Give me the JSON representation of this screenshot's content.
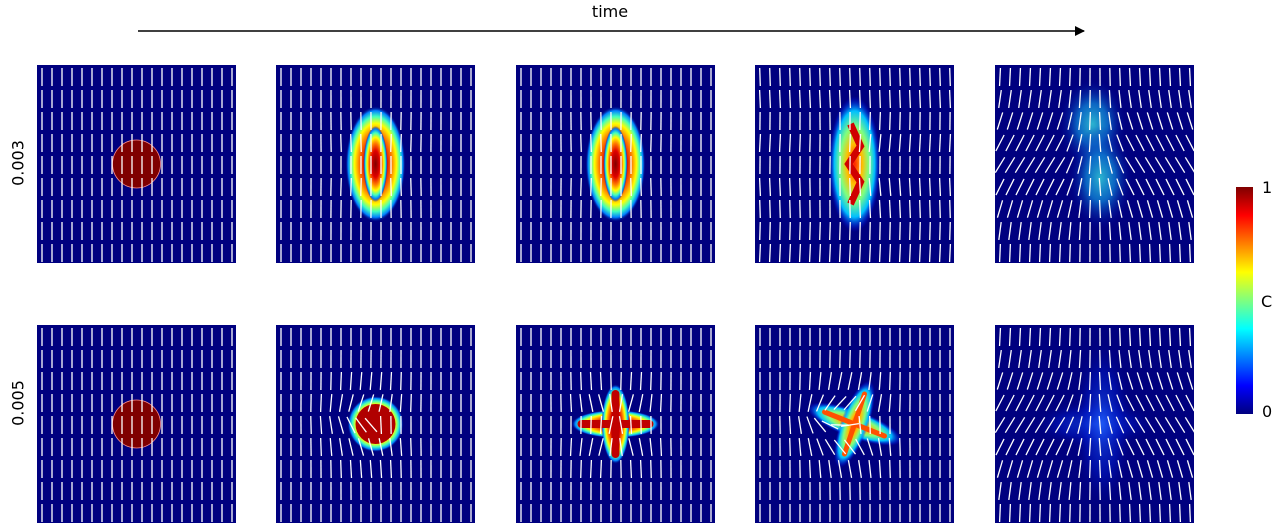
{
  "figure": {
    "time_label": "time",
    "rows": [
      {
        "label": "0.003",
        "panels": [
          "initial",
          "elongated",
          "elongated",
          "kinked",
          "diffuse"
        ]
      },
      {
        "label": "0.005",
        "panels": [
          "initial",
          "blob",
          "cross",
          "pinwheel",
          "diffuse"
        ]
      }
    ],
    "colorbar": {
      "label": "C",
      "max": "1",
      "min": "0",
      "colors": [
        "#00007f",
        "#0000ff",
        "#007fff",
        "#00ffff",
        "#7fff7f",
        "#ffff00",
        "#ff7f00",
        "#ff0000",
        "#7f0000"
      ]
    },
    "background_color": "#00007f",
    "director_color": "#ffffff"
  }
}
